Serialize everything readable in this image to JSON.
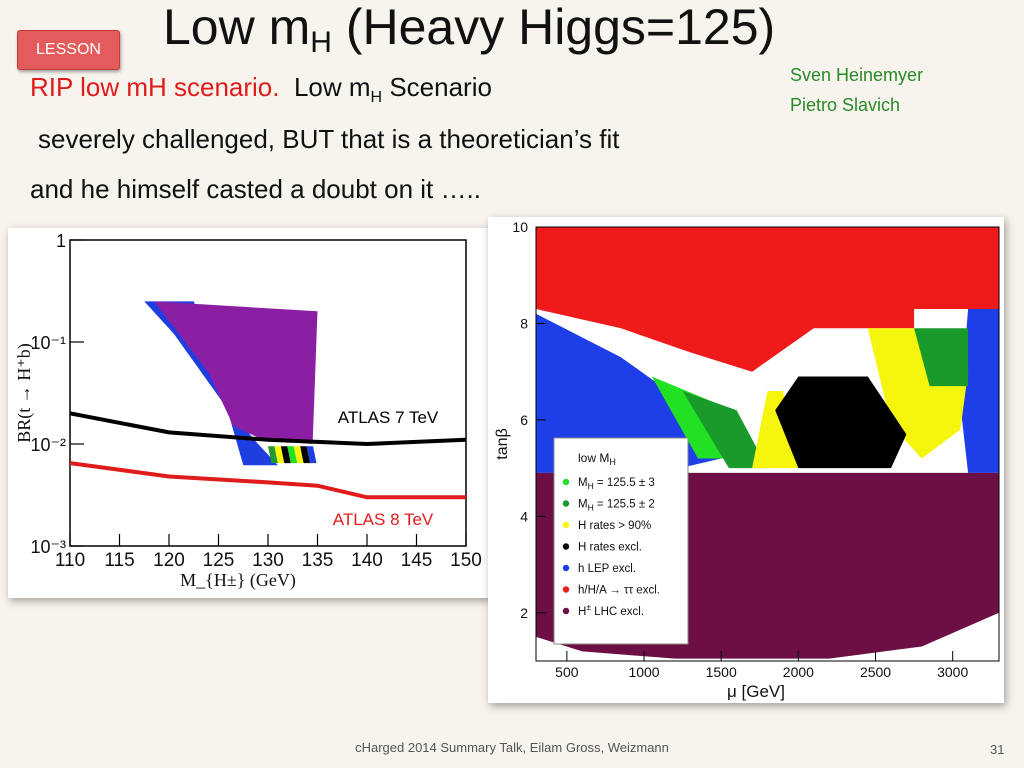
{
  "slide": {
    "title_main": "Low m",
    "title_sub": "H",
    "title_rest": " (Heavy Higgs=125)",
    "lesson_badge": "LESSON",
    "authors": [
      "Sven Heinemyer",
      "Pietro Slavich"
    ],
    "line1_red": "RIP low mH scenario.",
    "line1_black": "Low m",
    "line1_sub": "H",
    "line1_tail": " Scenario",
    "line2": "severely challenged,  BUT that is a theoretician’s fit",
    "line3": "and he himself casted a doubt on it …..",
    "footer": "cHarged 2014 Summary Talk, Eilam Gross, Weizmann",
    "page_number": "31"
  },
  "chart_data": [
    {
      "type": "line",
      "xlabel": "M_{H±} (GeV)",
      "ylabel": "BR(t → H⁺b)",
      "x_ticks": [
        "110",
        "115",
        "120",
        "125",
        "130",
        "135",
        "140",
        "145",
        "150"
      ],
      "y_ticks": [
        "10⁻³",
        "10⁻²",
        "10⁻¹",
        "1"
      ],
      "xlim": [
        110,
        150
      ],
      "ylim": [
        0.001,
        1
      ],
      "y_scale": "log",
      "series": [
        {
          "name": "ATLAS 7 TeV",
          "color": "#000000",
          "x": [
            110,
            120,
            130,
            140,
            150
          ],
          "y": [
            0.02,
            0.013,
            0.011,
            0.01,
            0.011
          ]
        },
        {
          "name": "ATLAS 8 TeV",
          "color": "#e01b1b",
          "x": [
            110,
            120,
            130,
            135,
            140,
            150
          ],
          "y": [
            0.0065,
            0.0048,
            0.0042,
            0.0039,
            0.003,
            0.003
          ]
        }
      ],
      "region_colors": {
        "purple": "#8b1fa3",
        "blue": "#1f3ee0"
      }
    },
    {
      "type": "heatmap",
      "xlabel": "μ [GeV]",
      "ylabel": "tanβ",
      "x_ticks": [
        "500",
        "1000",
        "1500",
        "2000",
        "2500",
        "3000"
      ],
      "y_ticks": [
        "2",
        "4",
        "6",
        "8",
        "10"
      ],
      "xlim": [
        300,
        3300
      ],
      "ylim": [
        1,
        10
      ],
      "legend_title_main": "low M",
      "legend_title_sub": "H",
      "legend": [
        {
          "label": "M",
          "sub": "H",
          "rest": " = 125.5 ± 3",
          "color": "#22e022"
        },
        {
          "label": "M",
          "sub": "H",
          "rest": " = 125.5 ± 2",
          "color": "#1a9a2a"
        },
        {
          "label": "H rates > 90%",
          "sub": "",
          "rest": "",
          "color": "#f5f50e"
        },
        {
          "label": "H rates excl.",
          "sub": "",
          "rest": "",
          "color": "#000000"
        },
        {
          "label": "h LEP excl.",
          "sub": "",
          "rest": "",
          "color": "#1e3ee8"
        },
        {
          "label": "h/H/A  →  ττ excl.",
          "sub": "",
          "rest": "",
          "color": "#ef1a1a"
        },
        {
          "label": "H",
          "sub": "±",
          "rest": " LHC excl.",
          "color": "#6b0f45"
        }
      ]
    }
  ]
}
